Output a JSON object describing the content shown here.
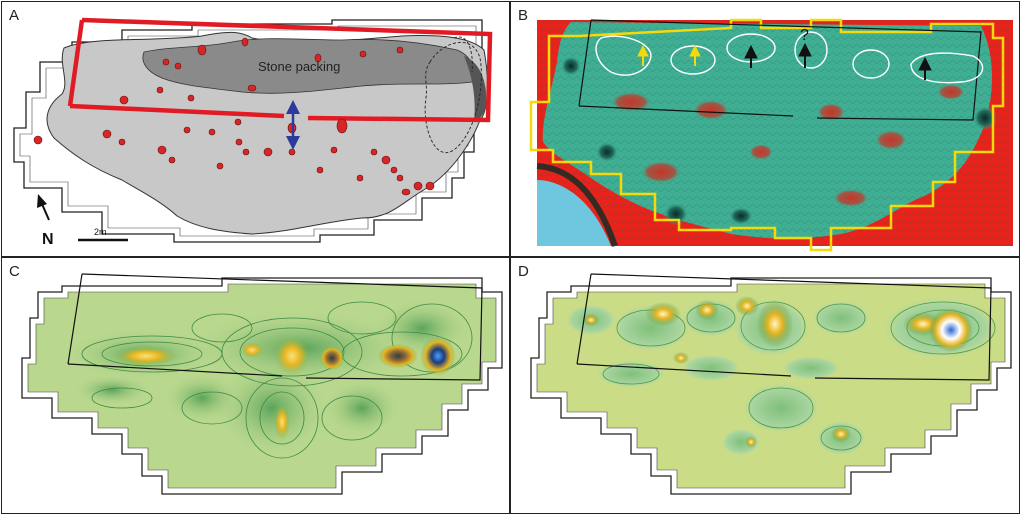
{
  "panels": {
    "a": {
      "label": "A",
      "stone_label": "Stone packing",
      "north_label": "N",
      "scale_label": "2m"
    },
    "b": {
      "label": "B",
      "question_mark": "?"
    },
    "c": {
      "label": "C"
    },
    "d": {
      "label": "D"
    }
  },
  "colors": {
    "excavation_outline": "#222222",
    "site_fill": "#c8c8c8",
    "stone_packing": "#888888",
    "red_frame": "#e01b24",
    "features": "#d62728",
    "section_arrow": "#2b3a9b",
    "b_background": "#e8231c",
    "b_field": "#3fae93",
    "b_water": "#6fc6df",
    "b_outline": "#f5d90a",
    "c_field": "#b9d88e",
    "c_contour": "#3d8a46",
    "c_peak": "#e8b520",
    "d_field": "#cbdc87",
    "d_contour": "#4b9a4b",
    "peak_core_blue": "#2a63d4"
  },
  "icons": {
    "north": "north-arrow-icon",
    "section": "double-arrow-icon",
    "marker": "up-arrow-icon"
  }
}
